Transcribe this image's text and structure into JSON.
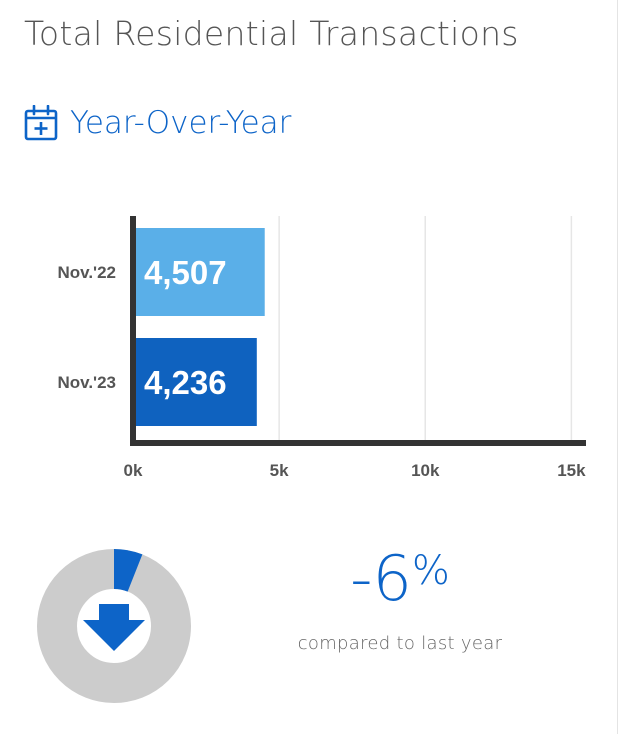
{
  "header": {
    "title": "Total Residential Transactions"
  },
  "section": {
    "label": "Year-Over-Year",
    "icon": "calendar-plus-icon"
  },
  "chart_data": {
    "type": "bar",
    "orientation": "horizontal",
    "categories": [
      "Nov.'22",
      "Nov.'23"
    ],
    "values": [
      4507,
      4236
    ],
    "value_labels": [
      "4,507",
      "4,236"
    ],
    "bar_colors": [
      "#5aafe8",
      "#0f62bf"
    ],
    "xlim": [
      0,
      15500
    ],
    "x_ticks": [
      0,
      5000,
      10000,
      15000
    ],
    "x_tick_labels": [
      "0k",
      "5k",
      "10k",
      "15k"
    ],
    "grid": "vertical",
    "legend": "none"
  },
  "comparison": {
    "value": "-6",
    "unit": "%",
    "caption": "compared to last year",
    "fraction": 0.06,
    "direction_icon": "arrow-down-icon"
  },
  "colors": {
    "accent": "#0d64c8",
    "ring_track": "#cccccc",
    "title_text": "#555555",
    "axis": "#333333"
  }
}
